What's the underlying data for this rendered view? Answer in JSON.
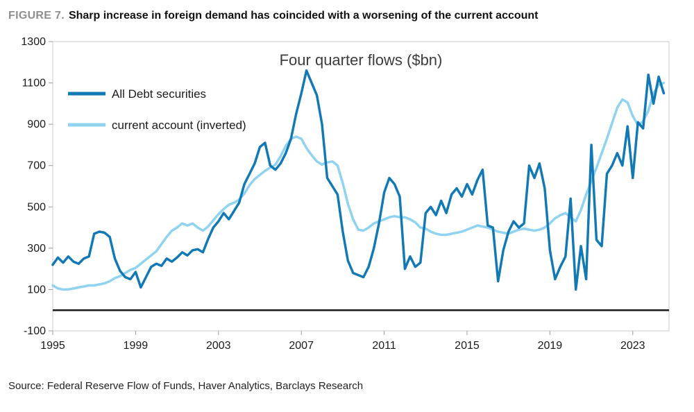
{
  "figure": {
    "label": "FIGURE 7.",
    "title": "Sharp increase in foreign demand has coincided with a worsening of the current account",
    "source": "Source: Federal Reserve Flow of Funds, Haver Analytics, Barclays Research"
  },
  "chart_data": {
    "type": "line",
    "title": "Four quarter flows ($bn)",
    "xlabel": "",
    "ylabel": "",
    "ylim": [
      -100,
      1300
    ],
    "ytick_step": 200,
    "xlim": [
      1995,
      2024.75
    ],
    "xticks": [
      1995,
      1999,
      2003,
      2007,
      2011,
      2015,
      2019,
      2023
    ],
    "x_start": 1995.0,
    "x_step": 0.25,
    "grid": false,
    "zero_line": true,
    "legend_position": "top-left",
    "colors": {
      "dark_blue": "#1279b5",
      "light_blue": "#8fd3f0",
      "axis": "#9b9b9b",
      "border": "#c9c9c9",
      "zero_axis": "#1a1a1a",
      "title_text": "#3c3c3c"
    },
    "series": [
      {
        "name": "All Debt securities",
        "color": "#1279b5",
        "values": [
          220,
          255,
          230,
          260,
          235,
          225,
          250,
          260,
          370,
          380,
          375,
          355,
          250,
          190,
          160,
          150,
          185,
          110,
          160,
          210,
          225,
          215,
          250,
          235,
          255,
          280,
          265,
          290,
          295,
          280,
          345,
          400,
          430,
          470,
          440,
          480,
          520,
          610,
          660,
          710,
          790,
          810,
          700,
          680,
          710,
          760,
          830,
          950,
          1050,
          1160,
          1100,
          1040,
          900,
          640,
          600,
          560,
          380,
          240,
          180,
          170,
          160,
          210,
          300,
          420,
          570,
          640,
          610,
          550,
          200,
          260,
          210,
          230,
          470,
          500,
          460,
          530,
          470,
          560,
          590,
          550,
          610,
          560,
          630,
          680,
          410,
          400,
          140,
          290,
          380,
          430,
          400,
          420,
          700,
          640,
          710,
          590,
          290,
          150,
          210,
          260,
          540,
          100,
          310,
          150,
          800,
          340,
          310,
          660,
          700,
          760,
          700,
          890,
          640,
          910,
          880,
          1140,
          1000,
          1130,
          1050
        ]
      },
      {
        "name": "current account (inverted)",
        "color": "#8fd3f0",
        "values": [
          120,
          105,
          100,
          100,
          105,
          110,
          115,
          120,
          120,
          125,
          130,
          140,
          155,
          165,
          180,
          195,
          205,
          225,
          245,
          265,
          285,
          320,
          355,
          385,
          400,
          420,
          410,
          420,
          400,
          385,
          405,
          435,
          465,
          490,
          510,
          520,
          535,
          565,
          605,
          635,
          655,
          675,
          690,
          705,
          745,
          795,
          830,
          840,
          830,
          785,
          750,
          720,
          705,
          715,
          720,
          700,
          615,
          515,
          440,
          390,
          385,
          400,
          420,
          430,
          440,
          450,
          455,
          450,
          450,
          440,
          425,
          400,
          395,
          380,
          370,
          365,
          365,
          370,
          375,
          380,
          390,
          400,
          410,
          405,
          400,
          390,
          380,
          375,
          370,
          380,
          390,
          395,
          390,
          385,
          390,
          400,
          420,
          445,
          460,
          470,
          450,
          430,
          485,
          560,
          625,
          690,
          760,
          830,
          905,
          980,
          1020,
          1005,
          940,
          895,
          915,
          965,
          1050,
          1090,
          1100
        ]
      }
    ]
  }
}
